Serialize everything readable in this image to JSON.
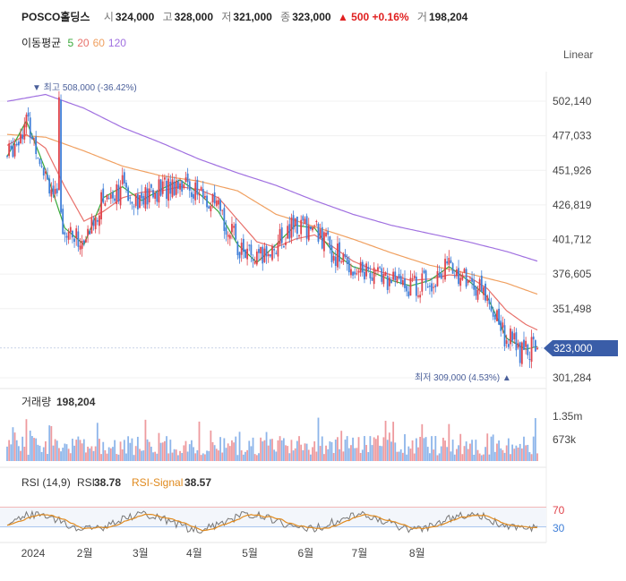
{
  "header": {
    "name": "POSCO홀딩스",
    "open_label": "시",
    "open": "324,000",
    "high_label": "고",
    "high": "328,000",
    "low_label": "저",
    "low": "321,000",
    "close_label": "종",
    "close": "323,000",
    "change": "▲ 500 +0.16%",
    "volume_label": "거",
    "volume": "198,204"
  },
  "ma_legend": {
    "label": "이동평균",
    "periods": [
      "5",
      "20",
      "60",
      "120"
    ]
  },
  "scale_mode": "Linear",
  "colors": {
    "up": "#e0434b",
    "down": "#3f7fd8",
    "ma5": "#3aa83a",
    "ma20": "#e8706a",
    "ma60": "#f0a060",
    "ma120": "#a070e0",
    "rsi": "#777777",
    "signal": "#e08a1e",
    "current": "#3a5da8"
  },
  "chart_data": {
    "type": "candlestick",
    "price_axis": {
      "ticks": [
        502140,
        477033,
        451926,
        426819,
        401712,
        376605,
        351498,
        301284
      ],
      "tick_labels": [
        "502,140",
        "477,033",
        "451,926",
        "426,819",
        "401,712",
        "376,605",
        "351,498",
        "301,284"
      ],
      "range": [
        295000,
        530000
      ]
    },
    "current_price": 323000,
    "current_price_label": "323,000",
    "high_annotation": "▼ 최고 508,000 (-36.42%)",
    "low_annotation": "최저 309,000 (4.53%) ▲",
    "months": [
      "2024",
      "2월",
      "3월",
      "4월",
      "5월",
      "6월",
      "7월",
      "8월"
    ],
    "ma_anchor_points": {
      "ma5": [
        [
          0,
          462
        ],
        [
          10,
          488
        ],
        [
          20,
          452
        ],
        [
          30,
          410
        ],
        [
          40,
          398
        ],
        [
          50,
          432
        ],
        [
          60,
          440
        ],
        [
          70,
          430
        ],
        [
          80,
          438
        ],
        [
          90,
          445
        ],
        [
          100,
          435
        ],
        [
          110,
          422
        ],
        [
          120,
          398
        ],
        [
          130,
          385
        ],
        [
          140,
          398
        ],
        [
          150,
          412
        ],
        [
          160,
          410
        ],
        [
          170,
          392
        ],
        [
          180,
          382
        ],
        [
          190,
          378
        ],
        [
          200,
          372
        ],
        [
          210,
          368
        ],
        [
          220,
          372
        ],
        [
          230,
          382
        ],
        [
          240,
          372
        ],
        [
          250,
          360
        ],
        [
          260,
          330
        ],
        [
          270,
          322
        ],
        [
          276,
          324
        ]
      ],
      "ma20": [
        [
          0,
          470
        ],
        [
          10,
          478
        ],
        [
          20,
          468
        ],
        [
          30,
          440
        ],
        [
          40,
          415
        ],
        [
          50,
          422
        ],
        [
          60,
          432
        ],
        [
          70,
          436
        ],
        [
          80,
          437
        ],
        [
          90,
          440
        ],
        [
          100,
          438
        ],
        [
          110,
          432
        ],
        [
          120,
          416
        ],
        [
          130,
          400
        ],
        [
          140,
          396
        ],
        [
          150,
          402
        ],
        [
          160,
          405
        ],
        [
          170,
          396
        ],
        [
          180,
          386
        ],
        [
          190,
          380
        ],
        [
          200,
          376
        ],
        [
          210,
          372
        ],
        [
          220,
          373
        ],
        [
          230,
          376
        ],
        [
          240,
          375
        ],
        [
          250,
          366
        ],
        [
          260,
          350
        ],
        [
          270,
          340
        ],
        [
          276,
          336
        ]
      ],
      "ma60": [
        [
          0,
          478
        ],
        [
          20,
          476
        ],
        [
          40,
          466
        ],
        [
          60,
          455
        ],
        [
          80,
          448
        ],
        [
          100,
          444
        ],
        [
          120,
          437
        ],
        [
          140,
          420
        ],
        [
          160,
          411
        ],
        [
          180,
          402
        ],
        [
          200,
          392
        ],
        [
          220,
          383
        ],
        [
          240,
          377
        ],
        [
          260,
          370
        ],
        [
          276,
          362
        ]
      ],
      "ma120": [
        [
          0,
          502
        ],
        [
          20,
          507
        ],
        [
          40,
          497
        ],
        [
          60,
          483
        ],
        [
          80,
          472
        ],
        [
          100,
          460
        ],
        [
          120,
          450
        ],
        [
          140,
          441
        ],
        [
          160,
          430
        ],
        [
          180,
          420
        ],
        [
          200,
          412
        ],
        [
          220,
          406
        ],
        [
          240,
          400
        ],
        [
          260,
          393
        ],
        [
          276,
          386
        ]
      ]
    },
    "volume": {
      "label": "거래량",
      "last": "198,204",
      "ticks": [
        "1.35m",
        "673k"
      ],
      "max": 1500000
    },
    "rsi": {
      "label": "RSI (14,9)",
      "rsi_label": "RSI",
      "rsi_value": "38.78",
      "signal_label": "RSI-Signal",
      "signal_value": "38.57",
      "levels": [
        70,
        30
      ],
      "level_labels": [
        "70",
        "30"
      ]
    }
  }
}
